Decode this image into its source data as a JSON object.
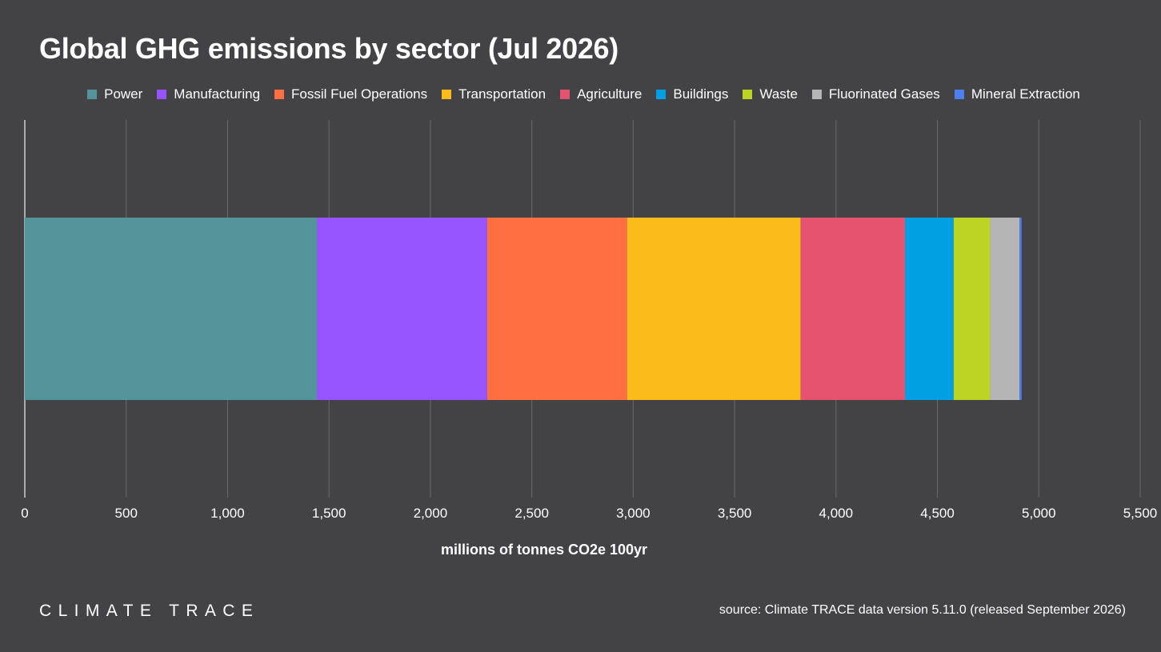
{
  "header": {
    "title": "Global GHG emissions by sector (Jul 2026)"
  },
  "footer": {
    "brand": "CLIMATE TRACE",
    "source": "source: Climate TRACE data version 5.11.0 (released September 2026)"
  },
  "colors": {
    "background": "#434345",
    "gridline": "#6a6a6c",
    "text": "#ffffff"
  },
  "chart_data": {
    "type": "bar",
    "orientation": "horizontal",
    "stacked": true,
    "title": "Global GHG emissions by sector (Jul 2026)",
    "xlabel": "millions of tonnes CO2e 100yr",
    "ylabel": "",
    "xlim": [
      0,
      5500
    ],
    "xticks": [
      0,
      500,
      1000,
      1500,
      2000,
      2500,
      3000,
      3500,
      4000,
      4500,
      5000,
      5500
    ],
    "xtick_labels": [
      "0",
      "500",
      "1,000",
      "1,500",
      "2,000",
      "2,500",
      "3,000",
      "3,500",
      "4,000",
      "4,500",
      "5,000",
      "5,500"
    ],
    "grid": true,
    "legend_position": "top",
    "series": [
      {
        "name": "Power",
        "value": 1440,
        "color": "#54959c"
      },
      {
        "name": "Manufacturing",
        "value": 840,
        "color": "#9654ff"
      },
      {
        "name": "Fossil Fuel Operations",
        "value": 690,
        "color": "#ff6f42"
      },
      {
        "name": "Transportation",
        "value": 855,
        "color": "#fbbb1a"
      },
      {
        "name": "Agriculture",
        "value": 515,
        "color": "#e5536f"
      },
      {
        "name": "Buildings",
        "value": 240,
        "color": "#01a0e3"
      },
      {
        "name": "Waste",
        "value": 180,
        "color": "#bcd524"
      },
      {
        "name": "Fluorinated Gases",
        "value": 145,
        "color": "#b5b5b5"
      },
      {
        "name": "Mineral Extraction",
        "value": 10,
        "color": "#4d7ff3"
      }
    ]
  }
}
